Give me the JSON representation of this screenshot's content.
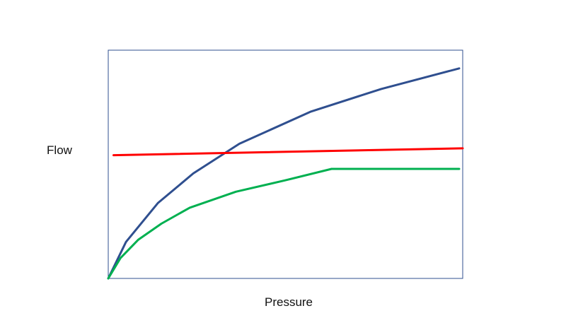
{
  "chart_data": {
    "type": "line",
    "xlabel": "Pressure",
    "ylabel": "Flow",
    "xlim": [
      0,
      100
    ],
    "ylim": [
      0,
      100
    ],
    "grid": false,
    "series": [
      {
        "color": "#2f4f8f",
        "x": [
          0,
          5,
          14,
          24,
          37,
          57,
          77,
          99
        ],
        "y": [
          0,
          16,
          33,
          46,
          59,
          73,
          83,
          92
        ]
      },
      {
        "color": "#ff0000",
        "x": [
          1.5,
          100
        ],
        "y": [
          54,
          57
        ]
      },
      {
        "color": "#00b050",
        "x": [
          0,
          3.5,
          8.5,
          15,
          23,
          36,
          50,
          63,
          99
        ],
        "y": [
          0,
          9,
          17,
          24,
          31,
          38,
          43,
          48,
          48
        ]
      }
    ]
  }
}
